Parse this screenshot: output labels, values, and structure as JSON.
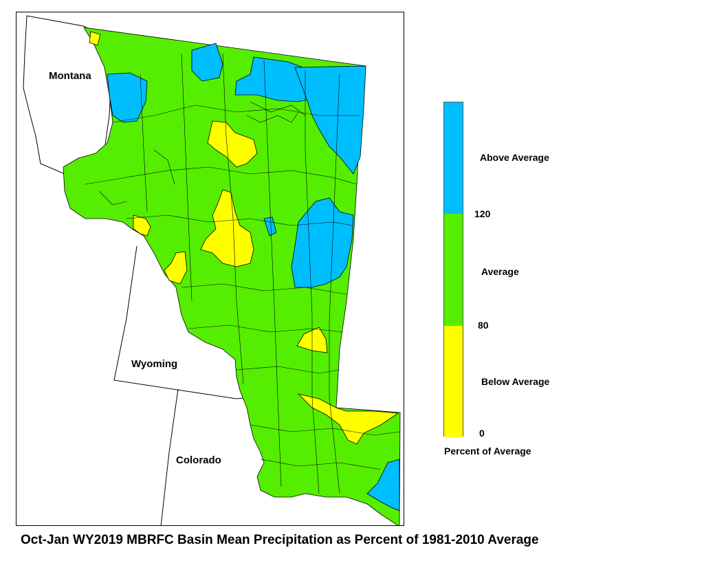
{
  "title": "Oct-Jan WY2019 MBRFC Basin Mean Precipitation as Percent of 1981-2010 Average",
  "states": [
    {
      "name": "Montana"
    },
    {
      "name": "Wyoming"
    },
    {
      "name": "Colorado"
    }
  ],
  "legend": {
    "title": "Percent of Average",
    "categories": [
      {
        "label": "Above Average",
        "color": "#00BFFF",
        "range": [
          120,
          null
        ]
      },
      {
        "label": "Average",
        "color": "#55EE00",
        "range": [
          80,
          120
        ]
      },
      {
        "label": "Below Average",
        "color": "#FFFF00",
        "range": [
          0,
          80
        ]
      }
    ],
    "breaks": [
      "120",
      "80",
      "0"
    ]
  },
  "colors": {
    "above": "#00BFFF",
    "average": "#55EE00",
    "below": "#FFFF00",
    "outline": "#000000"
  }
}
